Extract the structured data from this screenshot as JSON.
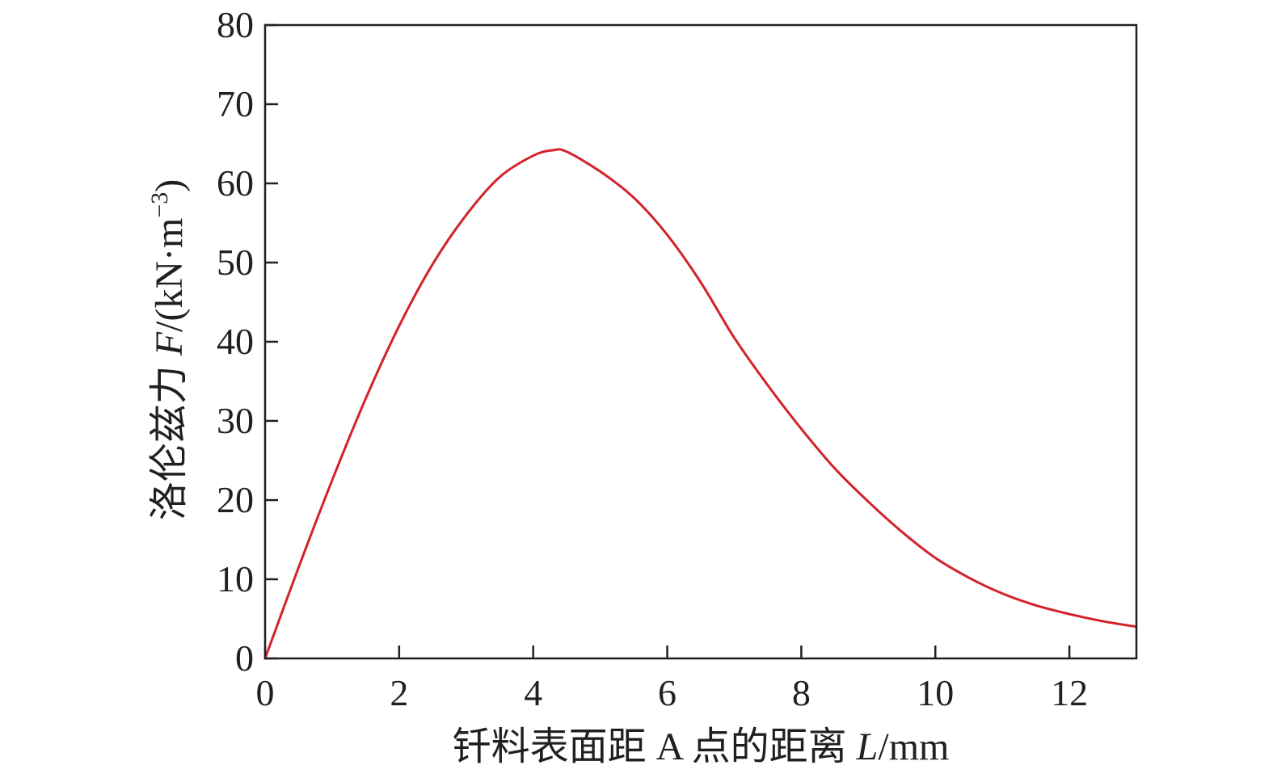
{
  "chart_data": {
    "type": "line",
    "title": "",
    "xlabel": {
      "prefix": "钎料表面距 A 点的距离 ",
      "var": "L",
      "unit": "/mm"
    },
    "ylabel": {
      "prefix": "洛伦兹力 ",
      "var": "F",
      "unit": "/(kN·m",
      "sup": "−3",
      "close": ")"
    },
    "xlim": [
      0,
      13
    ],
    "ylim": [
      0,
      80
    ],
    "xticks": [
      0,
      2,
      4,
      6,
      8,
      10,
      12
    ],
    "yticks": [
      0,
      10,
      20,
      30,
      40,
      50,
      60,
      70,
      80
    ],
    "grid": false,
    "line_color": "#d2232a",
    "series": [
      {
        "x": [
          0,
          0.5,
          1,
          1.5,
          2,
          2.5,
          3,
          3.5,
          4,
          4.3,
          4.5,
          5,
          5.5,
          6,
          6.5,
          7,
          7.5,
          8,
          8.5,
          9,
          9.5,
          10,
          10.5,
          11,
          11.5,
          12,
          12.5,
          13
        ],
        "y": [
          0,
          11.5,
          22.5,
          32.8,
          42,
          49.8,
          56,
          60.8,
          63.5,
          64.2,
          64.0,
          61.5,
          58.2,
          53.5,
          47.5,
          40.5,
          34.5,
          29,
          24,
          19.8,
          16.0,
          12.7,
          10.2,
          8.2,
          6.7,
          5.6,
          4.7,
          4.0
        ]
      }
    ]
  }
}
